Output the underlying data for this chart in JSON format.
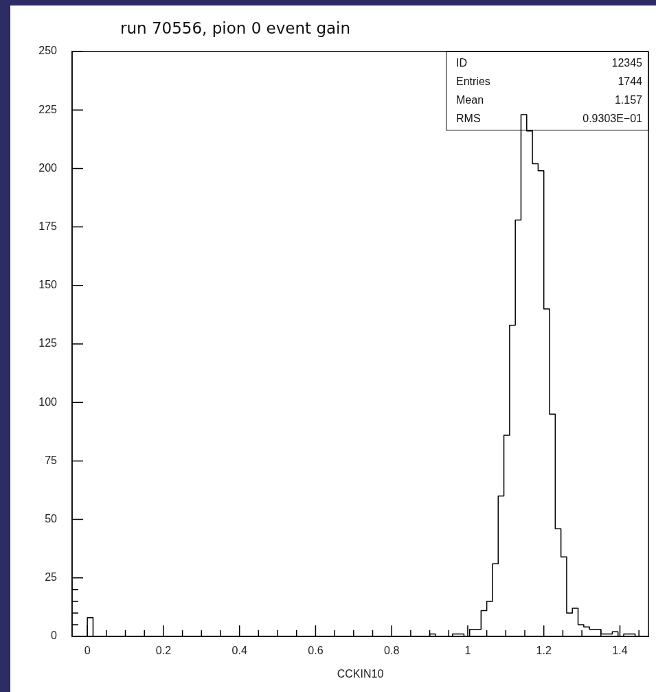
{
  "chart_data": {
    "type": "histogram",
    "title": "run 70556, pion 0 event gain",
    "xlabel": "CCKIN10",
    "bins": [
      0,
      0.015,
      0.03,
      0.045,
      0.06,
      0.075,
      0.09,
      0.105,
      0.12,
      0.135,
      0.15,
      0.165,
      0.18,
      0.195,
      0.21,
      0.225,
      0.24,
      0.255,
      0.27,
      0.285,
      0.3,
      0.315,
      0.33,
      0.345,
      0.36,
      0.375,
      0.39,
      0.405,
      0.42,
      0.435,
      0.45,
      0.465,
      0.48,
      0.495,
      0.51,
      0.525,
      0.54,
      0.555,
      0.57,
      0.585,
      0.6,
      0.615,
      0.63,
      0.645,
      0.66,
      0.675,
      0.69,
      0.705,
      0.72,
      0.735,
      0.75,
      0.765,
      0.78,
      0.795,
      0.81,
      0.825,
      0.84,
      0.855,
      0.87,
      0.885,
      0.9,
      0.915,
      0.93,
      0.945,
      0.96,
      0.975,
      0.99,
      1.005,
      1.02,
      1.035,
      1.05,
      1.065,
      1.08,
      1.095,
      1.11,
      1.125,
      1.14,
      1.155,
      1.17,
      1.185,
      1.2,
      1.215,
      1.23,
      1.245,
      1.26,
      1.275,
      1.29,
      1.305,
      1.32,
      1.335,
      1.35,
      1.365,
      1.38,
      1.395,
      1.41,
      1.425,
      1.44
    ],
    "values": [
      8,
      0,
      0,
      0,
      0,
      0,
      0,
      0,
      0,
      0,
      0,
      0,
      0,
      0,
      0,
      0,
      0,
      0,
      0,
      0,
      0,
      0,
      0,
      0,
      0,
      0,
      0,
      0,
      0,
      0,
      0,
      0,
      0,
      0,
      0,
      0,
      0,
      0,
      0,
      0,
      0,
      0,
      0,
      0,
      0,
      0,
      0,
      0,
      0,
      0,
      0,
      0,
      0,
      0,
      0,
      0,
      0,
      0,
      0,
      0,
      1,
      0,
      0,
      0,
      1,
      1,
      0,
      3,
      3,
      11,
      15,
      31,
      60,
      86,
      133,
      178,
      223,
      216,
      202,
      199,
      140,
      95,
      46,
      34,
      10,
      12,
      5,
      4,
      3,
      3,
      1,
      1,
      2,
      0,
      1,
      1
    ],
    "color": "#000000",
    "xlim": [
      -0.04,
      1.475
    ],
    "xticks": [
      0,
      {
        "value": 0.05,
        "label": null
      },
      {
        "value": 0.1,
        "label": null
      },
      {
        "value": 0.15,
        "label": null
      },
      0.2,
      {
        "value": 0.25,
        "label": null
      },
      {
        "value": 0.3,
        "label": null
      },
      {
        "value": 0.35,
        "label": null
      },
      0.4,
      {
        "value": 0.45,
        "label": null
      },
      {
        "value": 0.5,
        "label": null
      },
      {
        "value": 0.55,
        "label": null
      },
      0.6,
      {
        "value": 0.65,
        "label": null
      },
      {
        "value": 0.7,
        "label": null
      },
      {
        "value": 0.75,
        "label": null
      },
      0.8,
      {
        "value": 0.85,
        "label": null
      },
      {
        "value": 0.9,
        "label": null
      },
      {
        "value": 0.95,
        "label": null
      },
      1,
      {
        "value": 1.05,
        "label": null
      },
      {
        "value": 1.1,
        "label": null
      },
      {
        "value": 1.15,
        "label": null
      },
      1.2,
      {
        "value": 1.25,
        "label": null
      },
      {
        "value": 1.3,
        "label": null
      },
      {
        "value": 1.35,
        "label": null
      },
      1.4,
      {
        "value": 1.45,
        "label": null
      }
    ],
    "ylim": [
      0,
      250
    ],
    "yticks": [
      0,
      {
        "value": 5,
        "label": null
      },
      {
        "value": 10,
        "label": null
      },
      {
        "value": 15,
        "label": null
      },
      {
        "value": 20,
        "label": null
      },
      25,
      50,
      75,
      100,
      125,
      150,
      175,
      200,
      225,
      250
    ],
    "annotations": [
      "ID 12345",
      "Entries 1744",
      "Mean 1.157",
      "RMS 0.9303E−01"
    ],
    "legend": false
  }
}
